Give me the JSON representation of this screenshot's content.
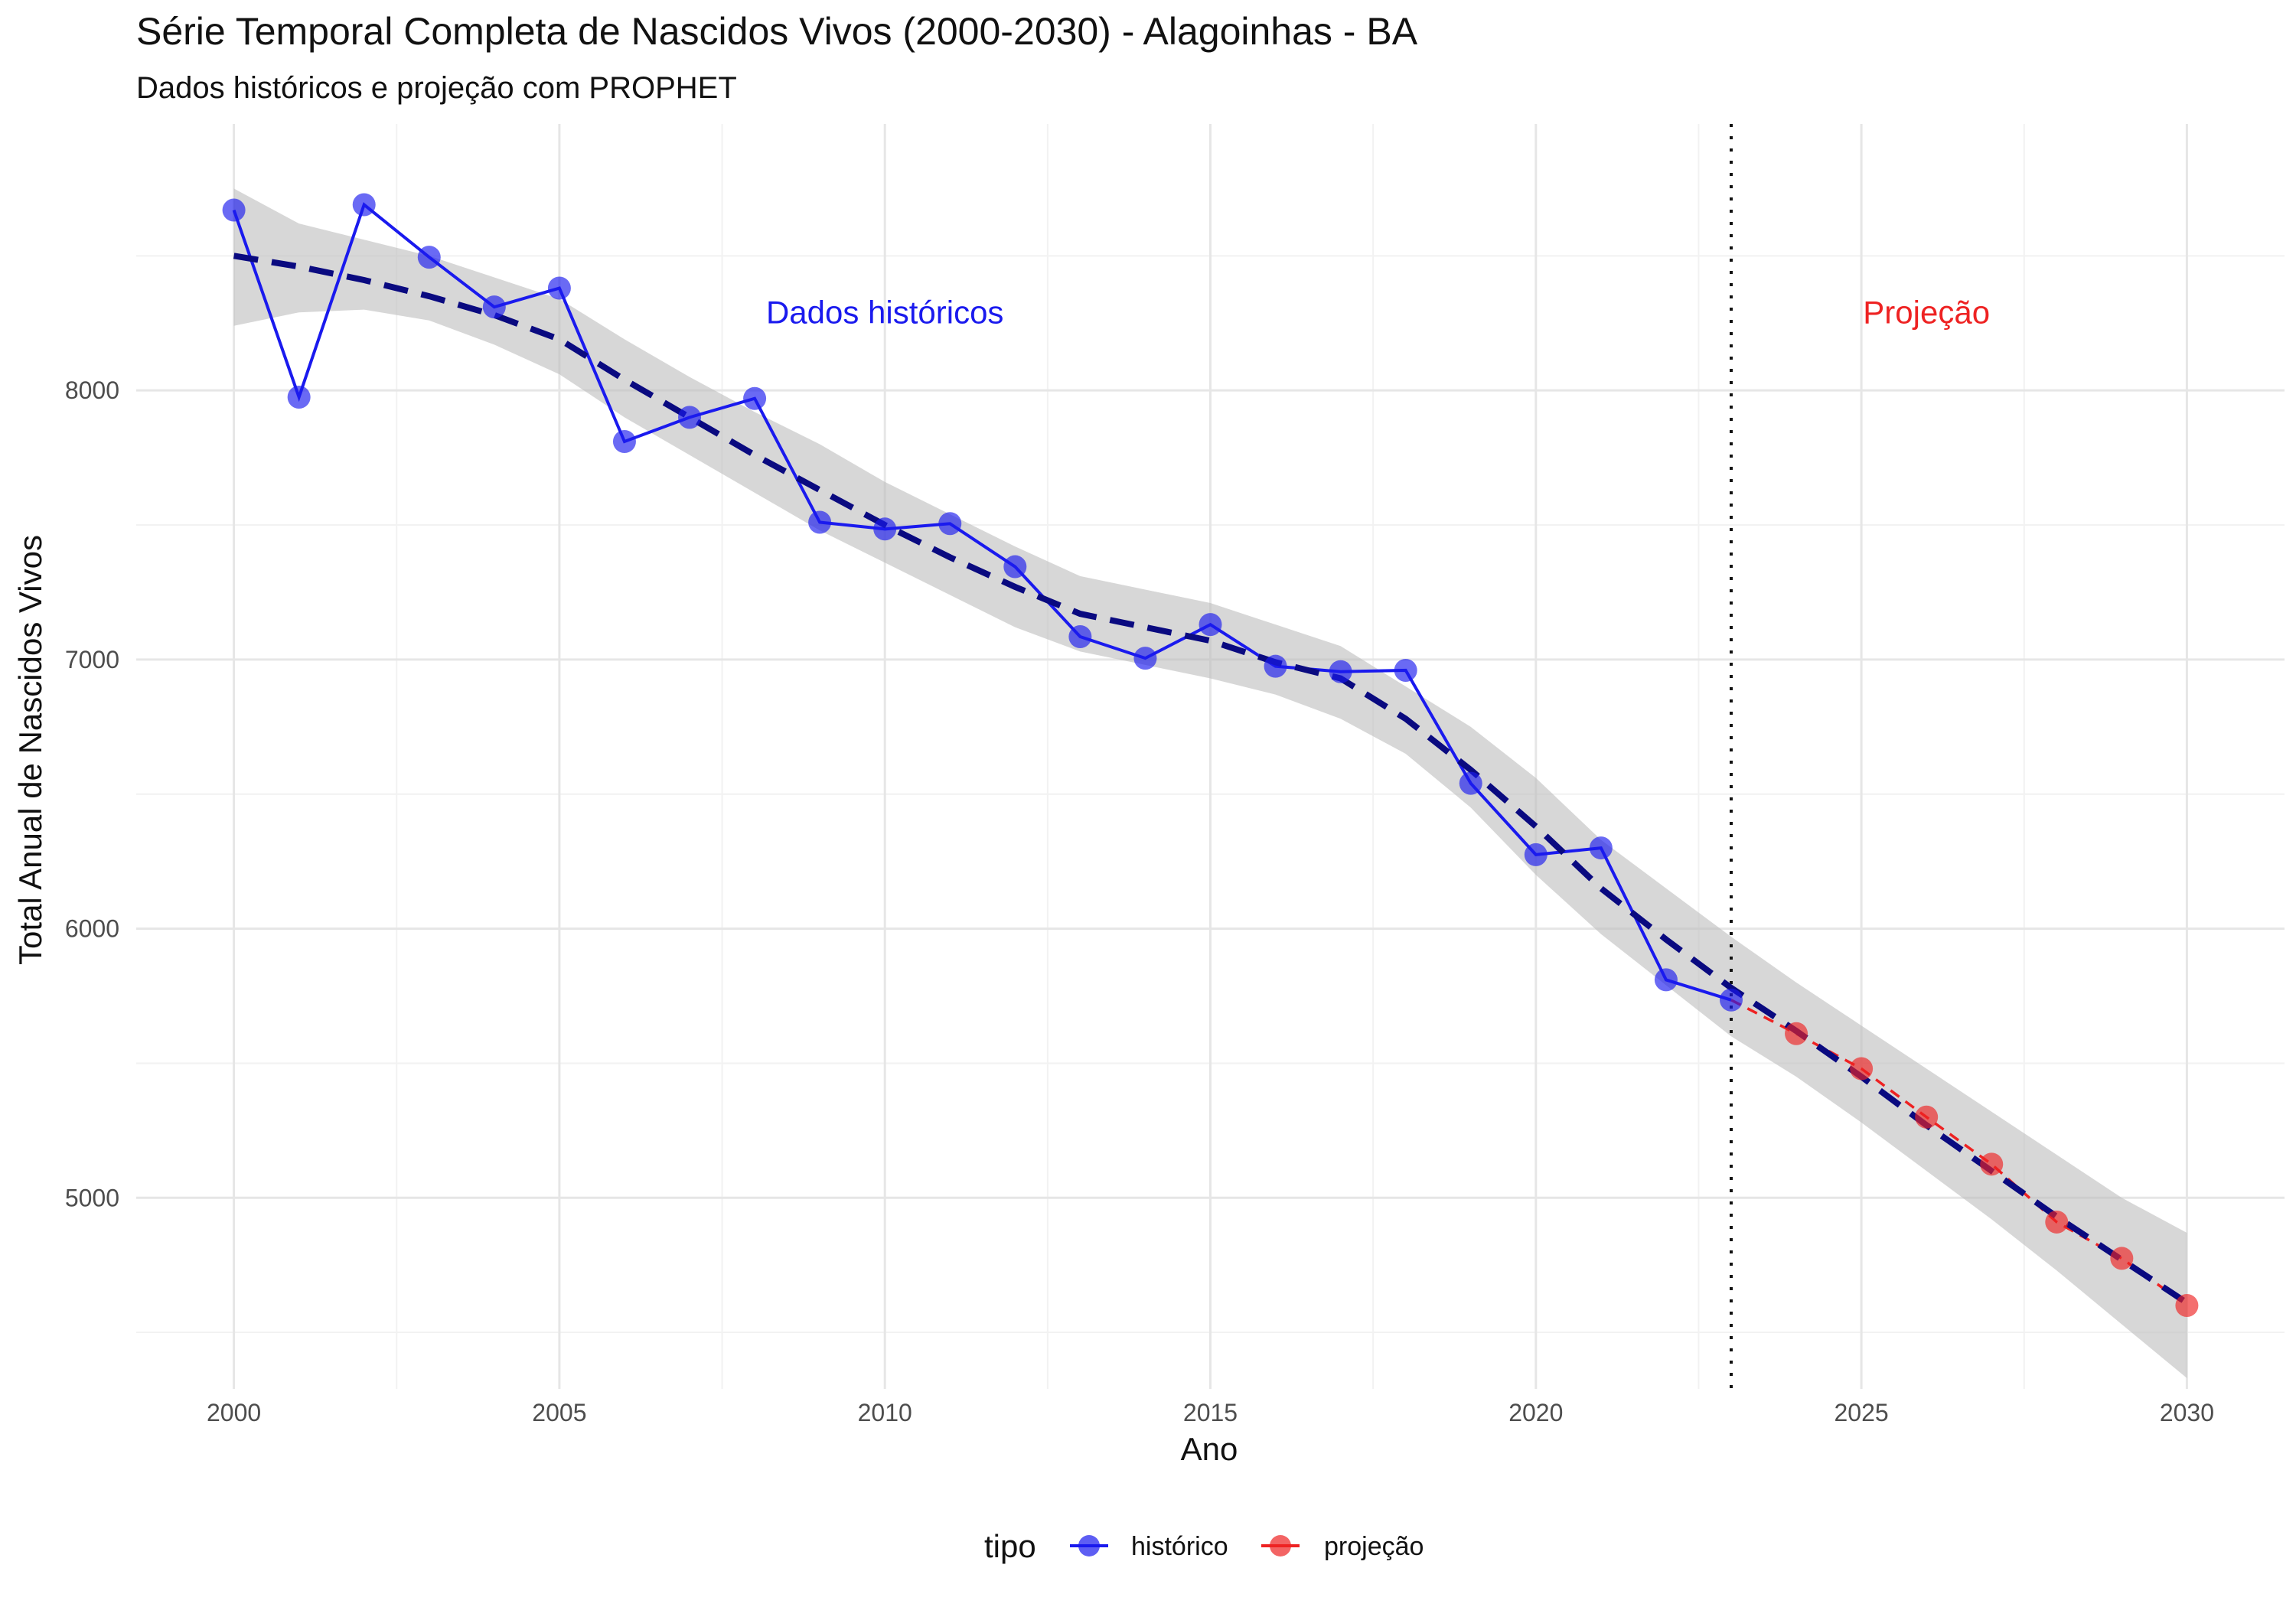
{
  "chart_data": {
    "type": "line",
    "title": "Série Temporal Completa de Nascidos Vivos (2000-2030) -  Alagoinhas - BA",
    "subtitle": "Dados históricos e projeção com PROPHET",
    "xlabel": "Ano",
    "ylabel": "Total Anual de Nascidos Vivos",
    "xlim": [
      1998.5,
      2031.5
    ],
    "ylim": [
      4290,
      8990
    ],
    "x_ticks": [
      2000,
      2005,
      2010,
      2015,
      2020,
      2025,
      2030
    ],
    "x_minor_ticks": [
      2002.5,
      2007.5,
      2012.5,
      2017.5,
      2022.5,
      2027.5
    ],
    "y_ticks": [
      5000,
      6000,
      7000,
      8000
    ],
    "y_minor_ticks": [
      4500,
      5500,
      6500,
      7500,
      8500
    ],
    "grid": true,
    "legend_position": "bottom",
    "legend_title": "tipo",
    "series": [
      {
        "name": "histórico",
        "color": "#1a1aee",
        "x": [
          2000,
          2001,
          2002,
          2003,
          2004,
          2005,
          2006,
          2007,
          2008,
          2009,
          2010,
          2011,
          2012,
          2013,
          2014,
          2015,
          2016,
          2017,
          2018,
          2019,
          2020,
          2021,
          2022,
          2023
        ],
        "values": [
          8670,
          7975,
          8690,
          8495,
          8310,
          8380,
          7810,
          7900,
          7970,
          7510,
          7485,
          7505,
          7345,
          7085,
          7005,
          7130,
          6975,
          6955,
          6960,
          6540,
          6275,
          6300,
          5810,
          5735
        ]
      },
      {
        "name": "projeção",
        "color": "#ee2222",
        "x": [
          2023,
          2024,
          2025,
          2026,
          2027,
          2028,
          2029,
          2030
        ],
        "values": [
          5735,
          5610,
          5480,
          5300,
          5125,
          4910,
          4775,
          4600
        ]
      }
    ],
    "trend": {
      "color": "#0a0a80",
      "x": [
        2000,
        2001,
        2002,
        2003,
        2004,
        2005,
        2006,
        2007,
        2008,
        2009,
        2010,
        2011,
        2012,
        2013,
        2014,
        2015,
        2016,
        2017,
        2018,
        2019,
        2020,
        2021,
        2022,
        2023,
        2024,
        2025,
        2026,
        2027,
        2028,
        2029,
        2030
      ],
      "values": [
        8500,
        8460,
        8410,
        8350,
        8280,
        8190,
        8040,
        7900,
        7760,
        7630,
        7500,
        7380,
        7270,
        7170,
        7120,
        7070,
        6990,
        6930,
        6780,
        6590,
        6380,
        6150,
        5960,
        5780,
        5620,
        5450,
        5270,
        5100,
        4930,
        4770,
        4610
      ],
      "band_upper": [
        8750,
        8620,
        8560,
        8500,
        8420,
        8340,
        8190,
        8050,
        7920,
        7800,
        7660,
        7540,
        7420,
        7310,
        7260,
        7210,
        7130,
        7050,
        6900,
        6750,
        6560,
        6330,
        6150,
        5970,
        5800,
        5640,
        5480,
        5320,
        5160,
        5000,
        4870
      ],
      "band_lower": [
        8240,
        8290,
        8300,
        8260,
        8170,
        8060,
        7900,
        7760,
        7620,
        7480,
        7360,
        7240,
        7120,
        7030,
        6980,
        6930,
        6870,
        6780,
        6650,
        6450,
        6200,
        5980,
        5790,
        5600,
        5450,
        5280,
        5100,
        4920,
        4730,
        4530,
        4330
      ]
    },
    "reference_line": {
      "x": 2023,
      "style": "dotted"
    },
    "annotations": [
      {
        "text": "Dados históricos",
        "x": 2010,
        "y": 8250,
        "color": "#1a1aee"
      },
      {
        "text": "Projeção",
        "x": 2026,
        "y": 8250,
        "color": "#ee2222"
      }
    ]
  }
}
